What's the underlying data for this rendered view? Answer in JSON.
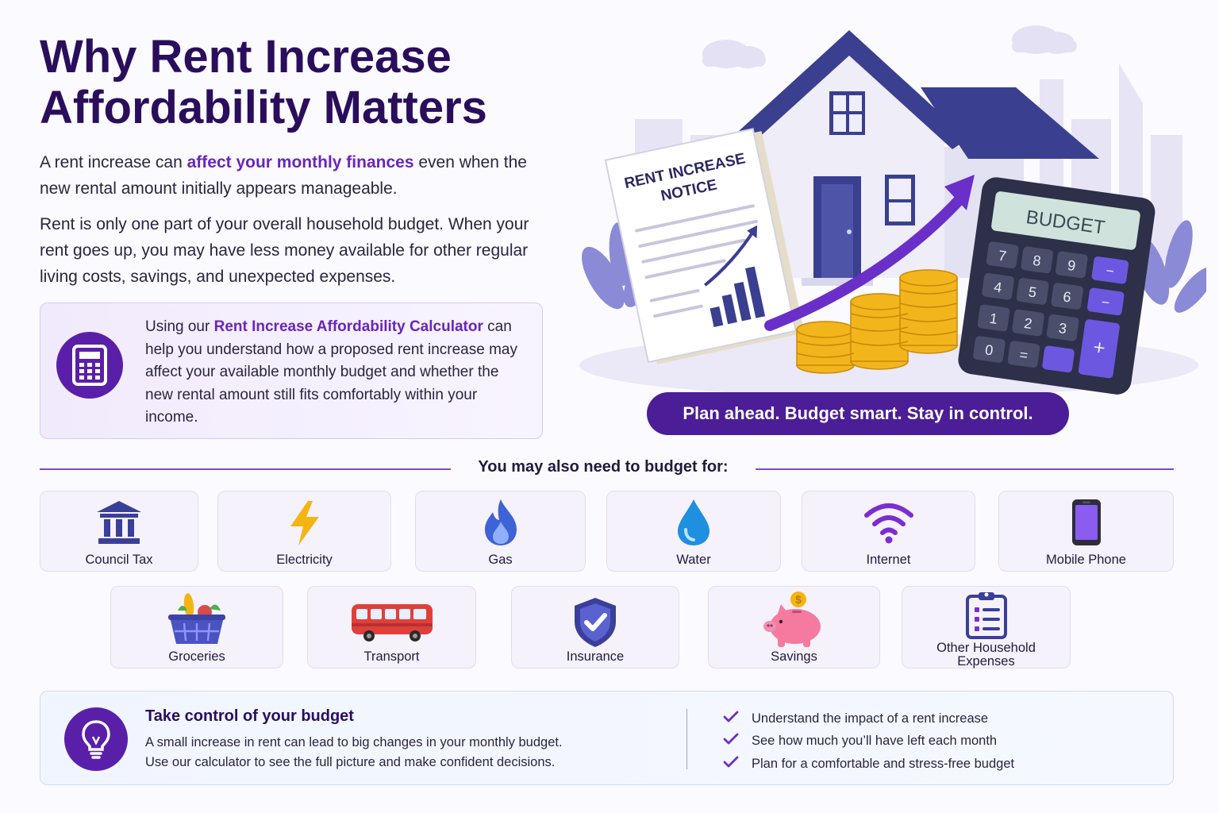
{
  "header": {
    "title_line1": "Why Rent Increase",
    "title_line2": "Affordability Matters"
  },
  "intro": {
    "p1_before": "A rent increase can ",
    "p1_highlight": "affect your monthly finances",
    "p1_after": " even when the new rental amount initially appears manageable.",
    "p2": "Rent is only one part of your overall household budget. When your rent goes up, you may have less money available for other regular living costs, savings, and unexpected expenses."
  },
  "callout": {
    "icon": "calculator-icon",
    "before": "Using our ",
    "highlight": "Rent Increase Affordability Calculator",
    "after": " can help you understand how a proposed rent increase may affect your available monthly budget and whether the new rental amount still fits comfortably within your income."
  },
  "illustration": {
    "notice_line1": "RENT INCREASE",
    "notice_line2": "NOTICE",
    "calculator_screen": "BUDGET",
    "keys": [
      "7",
      "8",
      "9",
      "−",
      "4",
      "5",
      "6",
      "−",
      "1",
      "2",
      "3",
      "+",
      "0",
      "="
    ]
  },
  "tagline": "Plan ahead. Budget smart. Stay in control.",
  "budget_section": {
    "heading": "You may also need to budget for:",
    "row1": [
      {
        "label": "Council Tax",
        "icon": "building-icon"
      },
      {
        "label": "Electricity",
        "icon": "lightning-icon"
      },
      {
        "label": "Gas",
        "icon": "flame-icon"
      },
      {
        "label": "Water",
        "icon": "water-drop-icon"
      },
      {
        "label": "Internet",
        "icon": "wifi-icon"
      },
      {
        "label": "Mobile Phone",
        "icon": "mobile-phone-icon"
      }
    ],
    "row2": [
      {
        "label": "Groceries",
        "icon": "grocery-basket-icon"
      },
      {
        "label": "Transport",
        "icon": "bus-icon"
      },
      {
        "label": "Insurance",
        "icon": "shield-check-icon"
      },
      {
        "label": "Savings",
        "icon": "piggy-bank-icon"
      },
      {
        "label_line1": "Other Household",
        "label_line2": "Expenses",
        "icon": "clipboard-list-icon"
      }
    ]
  },
  "bottom": {
    "icon": "lightbulb-icon",
    "title": "Take control of your budget",
    "line1": "A small increase in rent can lead to big changes in your monthly budget.",
    "line2": "Use our calculator to see the full picture and make confident decisions.",
    "checks": [
      "Understand the impact of a rent increase",
      "See how much you’ll have left each month",
      "Plan for a comfortable and stress-free budget"
    ]
  },
  "colors": {
    "title": "#2a0e5c",
    "accent": "#6a25b8",
    "badge": "#5a1fa8",
    "tagline_bg": "#4b1d96",
    "coin": "#f2b51c",
    "house_roof": "#3a3f8f"
  }
}
